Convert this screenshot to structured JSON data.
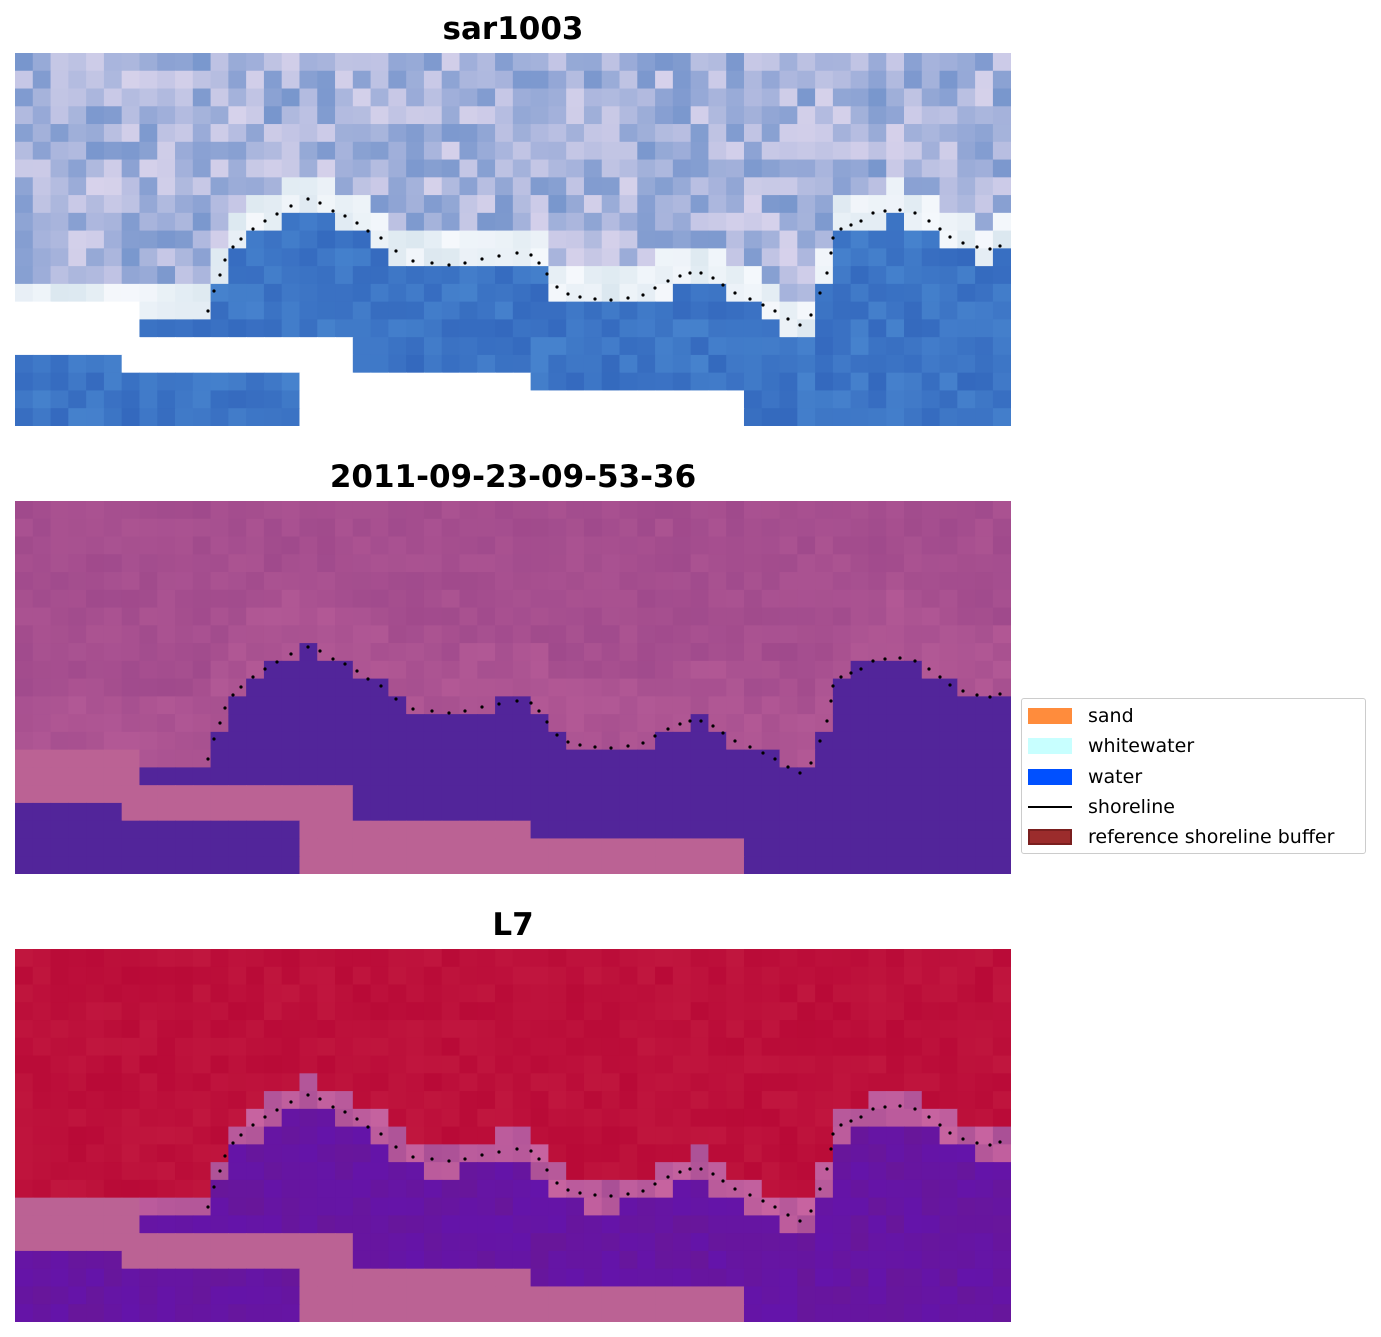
{
  "panels": [
    {
      "title": "sar1003",
      "palette": "rgb"
    },
    {
      "title": "2011-09-23-09-53-36",
      "palette": "classified"
    },
    {
      "title": "L7",
      "palette": "ndwi"
    }
  ],
  "legend": {
    "items": [
      {
        "label": "sand",
        "color": "#ff8c3c",
        "kind": "patch"
      },
      {
        "label": "whitewater",
        "color": "#c8ffff",
        "kind": "patch"
      },
      {
        "label": "water",
        "color": "#0050ff",
        "kind": "patch"
      },
      {
        "label": "shoreline",
        "color": "#000000",
        "kind": "line"
      },
      {
        "label": "reference shoreline buffer",
        "color": "#9b2c2c",
        "kind": "patch"
      }
    ]
  },
  "colors": {
    "nodata": "#ffffff",
    "class_land": "#a04a8c",
    "class_water": "#52259a",
    "class_fill": "#bb6294",
    "ndwi_land": "#c0163e",
    "ndwi_water": "#68169a",
    "ndwi_fill": "#bb6294"
  }
}
